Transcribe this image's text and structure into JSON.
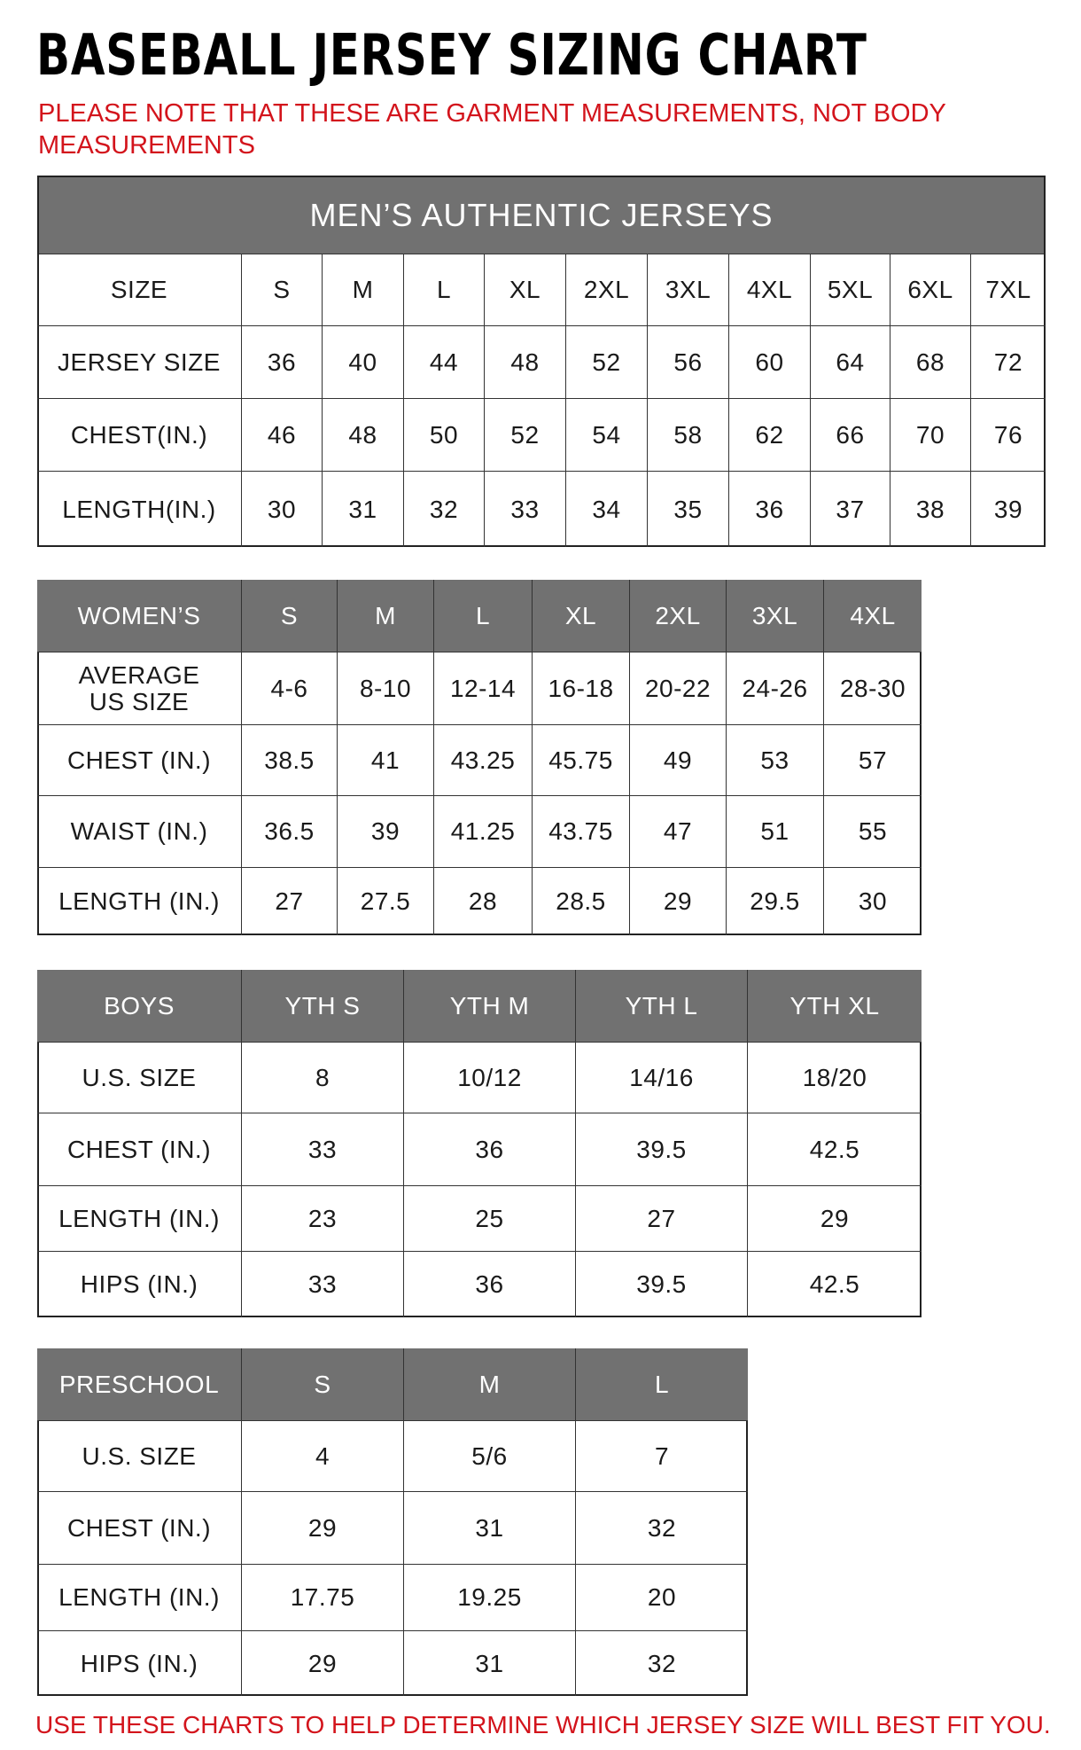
{
  "title": "BASEBALL JERSEY SIZING CHART",
  "note": "PLEASE NOTE THAT THESE ARE GARMENT MEASUREMENTS, NOT BODY MEASUREMENTS",
  "footer": "USE THESE CHARTS TO HELP DETERMINE WHICH JERSEY SIZE WILL BEST FIT YOU.",
  "colors": {
    "header_bg": "#717171",
    "note_red": "#d3141c"
  },
  "tables": [
    {
      "id": "mens",
      "banner": "MEN’S AUTHENTIC JERSEYS",
      "header_is_gray": false,
      "rows": [
        [
          "SIZE",
          "S",
          "M",
          "L",
          "XL",
          "2XL",
          "3XL",
          "4XL",
          "5XL",
          "6XL",
          "7XL"
        ],
        [
          "JERSEY SIZE",
          "36",
          "40",
          "44",
          "48",
          "52",
          "56",
          "60",
          "64",
          "68",
          "72"
        ],
        [
          "CHEST(IN.)",
          "46",
          "48",
          "50",
          "52",
          "54",
          "58",
          "62",
          "66",
          "70",
          "76"
        ],
        [
          "LENGTH(IN.)",
          "30",
          "31",
          "32",
          "33",
          "34",
          "35",
          "36",
          "37",
          "38",
          "39"
        ]
      ]
    },
    {
      "id": "womens",
      "header_is_gray": true,
      "rows": [
        [
          "WOMEN’S",
          "S",
          "M",
          "L",
          "XL",
          "2XL",
          "3XL",
          "4XL"
        ],
        [
          "AVERAGE US SIZE",
          "4-6",
          "8-10",
          "12-14",
          "16-18",
          "20-22",
          "24-26",
          "28-30"
        ],
        [
          "CHEST (IN.)",
          "38.5",
          "41",
          "43.25",
          "45.75",
          "49",
          "53",
          "57"
        ],
        [
          "WAIST (IN.)",
          "36.5",
          "39",
          "41.25",
          "43.75",
          "47",
          "51",
          "55"
        ],
        [
          "LENGTH (IN.)",
          "27",
          "27.5",
          "28",
          "28.5",
          "29",
          "29.5",
          "30"
        ]
      ]
    },
    {
      "id": "boys",
      "header_is_gray": true,
      "rows": [
        [
          "BOYS",
          "YTH S",
          "YTH M",
          "YTH L",
          "YTH XL"
        ],
        [
          "U.S. SIZE",
          "8",
          "10/12",
          "14/16",
          "18/20"
        ],
        [
          "CHEST (IN.)",
          "33",
          "36",
          "39.5",
          "42.5"
        ],
        [
          "LENGTH (IN.)",
          "23",
          "25",
          "27",
          "29"
        ],
        [
          "HIPS (IN.)",
          "33",
          "36",
          "39.5",
          "42.5"
        ]
      ]
    },
    {
      "id": "preschool",
      "header_is_gray": true,
      "rows": [
        [
          "PRESCHOOL",
          "S",
          "M",
          "L"
        ],
        [
          "U.S. SIZE",
          "4",
          "5/6",
          "7"
        ],
        [
          "CHEST (IN.)",
          "29",
          "31",
          "32"
        ],
        [
          "LENGTH (IN.)",
          "17.75",
          "19.25",
          "20"
        ],
        [
          "HIPS (IN.)",
          "29",
          "31",
          "32"
        ]
      ]
    }
  ]
}
